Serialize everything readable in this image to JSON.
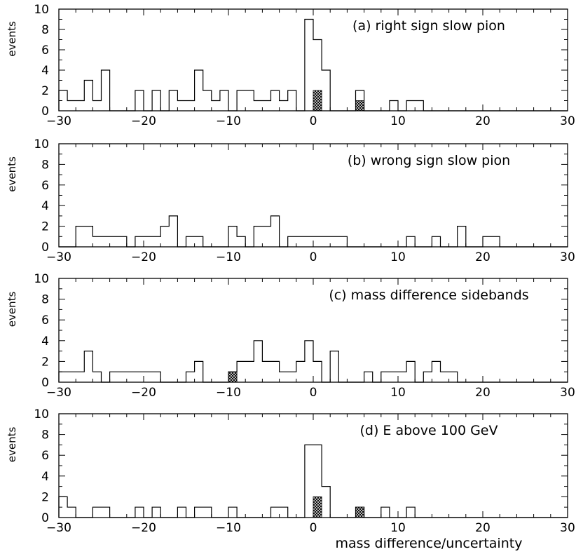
{
  "x_axis_label": "mass difference/uncertainty",
  "chart_data": [
    {
      "type": "histogram",
      "title": "(a) right sign slow pion",
      "ylabel": "events",
      "xlim": [
        -30,
        30
      ],
      "ylim": [
        0,
        10
      ],
      "x_ticks": [
        -30,
        -20,
        -10,
        0,
        10,
        20,
        30
      ],
      "y_ticks": [
        0,
        2,
        4,
        6,
        8,
        10
      ],
      "bin_width": 1,
      "bin_edges_start": -30,
      "series": [
        {
          "name": "",
          "values": [
            2,
            1,
            1,
            3,
            1,
            4,
            0,
            0,
            0,
            2,
            0,
            2,
            0,
            2,
            1,
            1,
            4,
            2,
            1,
            2,
            0,
            2,
            2,
            1,
            1,
            2,
            1,
            2,
            0,
            9,
            7,
            4,
            0,
            0,
            0,
            2,
            0,
            0,
            0,
            1,
            0,
            1,
            1,
            0,
            0,
            0,
            0,
            0,
            0,
            0,
            0,
            0,
            0,
            0,
            0,
            0,
            0,
            0,
            0,
            0
          ]
        },
        {
          "name": "",
          "shaded": true,
          "values": [
            0,
            0,
            0,
            0,
            0,
            0,
            0,
            0,
            0,
            0,
            0,
            0,
            0,
            0,
            0,
            0,
            0,
            0,
            0,
            0,
            0,
            0,
            0,
            0,
            0,
            0,
            0,
            0,
            0,
            0,
            2,
            0,
            0,
            0,
            0,
            1,
            0,
            0,
            0,
            0,
            0,
            0,
            0,
            0,
            0,
            0,
            0,
            0,
            0,
            0,
            0,
            0,
            0,
            0,
            0,
            0,
            0,
            0,
            0,
            0
          ]
        }
      ],
      "grid": false,
      "legend": "none"
    },
    {
      "type": "histogram",
      "title": "(b) wrong sign slow pion",
      "ylabel": "events",
      "xlim": [
        -30,
        30
      ],
      "ylim": [
        0,
        10
      ],
      "x_ticks": [
        -30,
        -20,
        -10,
        0,
        10,
        20,
        30
      ],
      "y_ticks": [
        0,
        2,
        4,
        6,
        8,
        10
      ],
      "bin_width": 1,
      "bin_edges_start": -30,
      "series": [
        {
          "name": "",
          "values": [
            0,
            0,
            2,
            2,
            1,
            1,
            1,
            1,
            0,
            1,
            1,
            1,
            2,
            3,
            0,
            1,
            1,
            0,
            0,
            0,
            2,
            1,
            0,
            2,
            2,
            3,
            0,
            1,
            1,
            1,
            1,
            1,
            1,
            1,
            0,
            0,
            0,
            0,
            0,
            0,
            0,
            1,
            0,
            0,
            1,
            0,
            0,
            2,
            0,
            0,
            1,
            1,
            0,
            0,
            0,
            0,
            0,
            0,
            0,
            0
          ]
        }
      ],
      "grid": false,
      "legend": "none"
    },
    {
      "type": "histogram",
      "title": "(c) mass difference sidebands",
      "ylabel": "events",
      "xlim": [
        -30,
        30
      ],
      "ylim": [
        0,
        10
      ],
      "x_ticks": [
        -30,
        -20,
        -10,
        0,
        10,
        20,
        30
      ],
      "y_ticks": [
        0,
        2,
        4,
        6,
        8,
        10
      ],
      "bin_width": 1,
      "bin_edges_start": -30,
      "series": [
        {
          "name": "",
          "values": [
            1,
            1,
            1,
            3,
            1,
            0,
            1,
            1,
            1,
            1,
            1,
            1,
            0,
            0,
            0,
            1,
            2,
            0,
            0,
            0,
            1,
            2,
            2,
            4,
            2,
            2,
            1,
            1,
            2,
            4,
            2,
            0,
            3,
            0,
            0,
            0,
            1,
            0,
            1,
            1,
            1,
            2,
            0,
            1,
            2,
            1,
            1,
            0,
            0,
            0,
            0,
            0,
            0,
            0,
            0,
            0,
            0,
            0,
            0,
            0
          ]
        },
        {
          "name": "",
          "shaded": true,
          "values": [
            0,
            0,
            0,
            0,
            0,
            0,
            0,
            0,
            0,
            0,
            0,
            0,
            0,
            0,
            0,
            0,
            0,
            0,
            0,
            0,
            1,
            0,
            0,
            0,
            0,
            0,
            0,
            0,
            0,
            0,
            0,
            0,
            0,
            0,
            0,
            0,
            0,
            0,
            0,
            0,
            0,
            0,
            0,
            0,
            0,
            0,
            0,
            0,
            0,
            0,
            0,
            0,
            0,
            0,
            0,
            0,
            0,
            0,
            0,
            0
          ]
        }
      ],
      "grid": false,
      "legend": "none"
    },
    {
      "type": "histogram",
      "title": "(d) E above 100 GeV",
      "ylabel": "events",
      "xlim": [
        -30,
        30
      ],
      "ylim": [
        0,
        10
      ],
      "x_ticks": [
        -30,
        -20,
        -10,
        0,
        10,
        20,
        30
      ],
      "y_ticks": [
        0,
        2,
        4,
        6,
        8,
        10
      ],
      "bin_width": 1,
      "bin_edges_start": -30,
      "series": [
        {
          "name": "",
          "values": [
            2,
            1,
            0,
            0,
            1,
            1,
            0,
            0,
            0,
            1,
            0,
            1,
            0,
            0,
            1,
            0,
            1,
            1,
            0,
            0,
            1,
            0,
            0,
            0,
            0,
            1,
            1,
            0,
            0,
            7,
            7,
            3,
            0,
            0,
            0,
            1,
            0,
            0,
            1,
            0,
            0,
            1,
            0,
            0,
            0,
            0,
            0,
            0,
            0,
            0,
            0,
            0,
            0,
            0,
            0,
            0,
            0,
            0,
            0,
            0
          ]
        },
        {
          "name": "",
          "shaded": true,
          "values": [
            0,
            0,
            0,
            0,
            0,
            0,
            0,
            0,
            0,
            0,
            0,
            0,
            0,
            0,
            0,
            0,
            0,
            0,
            0,
            0,
            0,
            0,
            0,
            0,
            0,
            0,
            0,
            0,
            0,
            0,
            2,
            0,
            0,
            0,
            0,
            1,
            0,
            0,
            0,
            0,
            0,
            0,
            0,
            0,
            0,
            0,
            0,
            0,
            0,
            0,
            0,
            0,
            0,
            0,
            0,
            0,
            0,
            0,
            0,
            0
          ]
        }
      ],
      "grid": false,
      "legend": "none"
    }
  ]
}
